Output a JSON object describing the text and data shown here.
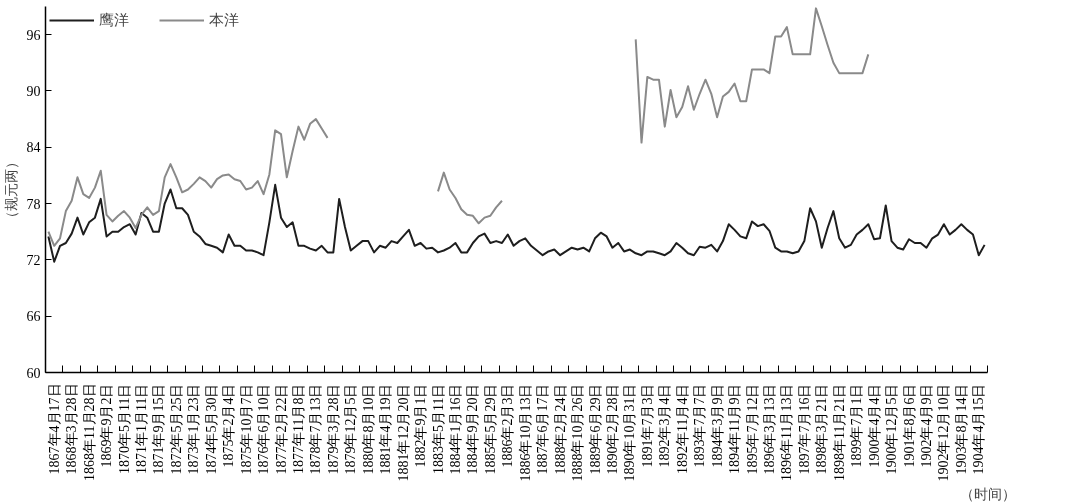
{
  "chart_data": {
    "type": "line",
    "ylabel": "（规元两）",
    "xlabel": "（时间）",
    "categories": [
      null,
      "1867年4月17日",
      null,
      null,
      "1868年3月28日",
      null,
      null,
      "1868年11月28日",
      null,
      null,
      "1869年9月2日",
      null,
      null,
      "1870年5月11日",
      null,
      null,
      "1871年1月11日",
      null,
      null,
      "1871年9月15日",
      null,
      null,
      "1872年5月25日",
      null,
      null,
      "1873年1月23日",
      null,
      null,
      "1874年5月30日",
      null,
      null,
      "1875年2月4日",
      null,
      null,
      "1875年10月7日",
      null,
      null,
      "1876年6月10日",
      null,
      null,
      "1877年2月22日",
      null,
      null,
      "1877年11月8日",
      null,
      null,
      "1878年7月13日",
      null,
      null,
      "1879年3月28日",
      null,
      null,
      "1879年12月5日",
      null,
      null,
      "1880年8月10日",
      null,
      null,
      "1881年4月19日",
      null,
      null,
      "1881年12月20日",
      null,
      null,
      "1882年9月1日",
      null,
      null,
      "1883年5月11日",
      null,
      null,
      "1884年1月16日",
      null,
      null,
      "1884年9月20日",
      null,
      null,
      "1885年5月29日",
      null,
      null,
      "1886年2月3日",
      null,
      null,
      "1886年10月13日",
      null,
      null,
      "1887年6月17日",
      null,
      null,
      "1888年2月24日",
      null,
      null,
      "1888年10月26日",
      null,
      null,
      "1889年6月29日",
      null,
      null,
      "1890年2月28日",
      null,
      null,
      "1890年10月31日",
      null,
      null,
      "1891年7月3日",
      null,
      null,
      "1892年3月4日",
      null,
      null,
      "1892年11月4日",
      null,
      null,
      "1893年7月7日",
      null,
      null,
      "1894年3月9日",
      null,
      null,
      "1894年11月9日",
      null,
      null,
      "1895年7月12日",
      null,
      null,
      "1896年3月13日",
      null,
      null,
      "1896年11月13日",
      null,
      null,
      "1897年7月16日",
      null,
      null,
      "1898年3月21日",
      null,
      null,
      "1898年11月21日",
      null,
      null,
      "1899年7月1日",
      null,
      null,
      "1900年4月4日",
      null,
      null,
      "1900年12月5日",
      null,
      null,
      "1901年8月6日",
      null,
      null,
      "1902年4月9日",
      null,
      null,
      "1902年12月10日",
      null,
      null,
      "1903年8月14日",
      null,
      null,
      "1904年4月15日",
      null
    ],
    "series": [
      {
        "name": "鹰洋",
        "color": "#1e1e1e",
        "values": [
          74.5,
          71.8,
          73.5,
          73.8,
          74.8,
          76.5,
          74.7,
          76,
          76.5,
          78.5,
          74.5,
          75,
          75,
          75.5,
          75.8,
          74.7,
          77,
          76.5,
          75,
          75,
          78,
          79.5,
          77.5,
          77.5,
          76.8,
          75,
          74.5,
          73.7,
          73.5,
          73.3,
          72.8,
          74.7,
          73.5,
          73.5,
          73,
          73,
          72.8,
          72.5,
          76,
          80,
          76.5,
          75.5,
          76,
          73.5,
          73.5,
          73.2,
          73,
          73.5,
          72.8,
          72.8,
          78.5,
          75.5,
          73,
          73.5,
          74,
          74,
          72.8,
          73.5,
          73.3,
          74,
          73.8,
          74.5,
          75.2,
          73.5,
          73.8,
          73.2,
          73.3,
          72.8,
          73,
          73.3,
          73.8,
          72.8,
          72.8,
          73.8,
          74.5,
          74.8,
          73.8,
          74,
          73.8,
          74.7,
          73.5,
          74,
          74.3,
          73.5,
          73,
          72.5,
          72.9,
          73.1,
          72.5,
          72.9,
          73.3,
          73.1,
          73.3,
          72.9,
          74.3,
          74.9,
          74.5,
          73.3,
          73.8,
          72.9,
          73.1,
          72.7,
          72.5,
          72.9,
          72.9,
          72.7,
          72.5,
          72.9,
          73.8,
          73.3,
          72.7,
          72.5,
          73.4,
          73.3,
          73.6,
          72.9,
          74,
          75.8,
          75.2,
          74.5,
          74.3,
          76.1,
          75.6,
          75.8,
          75.1,
          73.3,
          72.9,
          72.9,
          72.7,
          72.9,
          74,
          77.5,
          76.1,
          73.3,
          75.4,
          77.2,
          74.3,
          73.3,
          73.6,
          74.7,
          75.2,
          75.8,
          74.2,
          74.3,
          77.8,
          74,
          73.3,
          73.1,
          74.2,
          73.8,
          73.8,
          73.3,
          74.3,
          74.7,
          75.8,
          74.7,
          75.2,
          75.8,
          75.2,
          74.7,
          72.5,
          73.6
        ]
      },
      {
        "name": "本洋",
        "color": "#8a8a8a",
        "values": [
          75,
          73.5,
          74.3,
          77.2,
          78.3,
          80.8,
          79,
          78.6,
          79.7,
          81.5,
          76.8,
          76.1,
          76.7,
          77.2,
          76.5,
          75.4,
          76.8,
          77.6,
          76.8,
          77.2,
          80.8,
          82.2,
          80.8,
          79.2,
          79.5,
          80.1,
          80.8,
          80.4,
          79.7,
          80.6,
          81,
          81.1,
          80.6,
          80.4,
          79.5,
          79.7,
          80.4,
          79,
          81.1,
          85.8,
          85.4,
          80.8,
          83.6,
          86.2,
          84.8,
          86.5,
          87,
          86,
          85,
          null,
          null,
          null,
          null,
          null,
          null,
          null,
          null,
          null,
          null,
          null,
          null,
          null,
          null,
          null,
          null,
          null,
          null,
          79.3,
          81.3,
          79.5,
          78.6,
          77.4,
          76.8,
          76.7,
          75.9,
          76.5,
          76.7,
          77.6,
          78.3,
          null,
          null,
          null,
          null,
          null,
          null,
          null,
          null,
          null,
          null,
          null,
          null,
          null,
          null,
          null,
          null,
          null,
          null,
          null,
          null,
          null,
          null,
          95.5,
          84.5,
          91.5,
          91.2,
          91.2,
          86.2,
          90.1,
          87.2,
          88.3,
          90.5,
          88,
          89.7,
          91.2,
          89.7,
          87.2,
          89.4,
          89.9,
          90.8,
          88.9,
          88.9,
          92.3,
          92.3,
          92.3,
          91.9,
          95.8,
          95.8,
          96.8,
          93.9,
          93.9,
          93.9,
          93.9,
          98.8,
          96.9,
          94.9,
          93,
          91.9,
          91.9,
          91.9,
          91.9,
          91.9,
          93.9,
          null,
          null,
          null,
          null,
          null,
          null,
          null,
          null,
          null,
          null,
          null,
          null,
          null,
          null,
          null,
          null,
          null,
          null,
          null,
          null
        ]
      }
    ],
    "ylim": [
      60,
      99
    ],
    "yticks": [
      60,
      66,
      72,
      78,
      84,
      90,
      96
    ],
    "legend": "top left"
  }
}
